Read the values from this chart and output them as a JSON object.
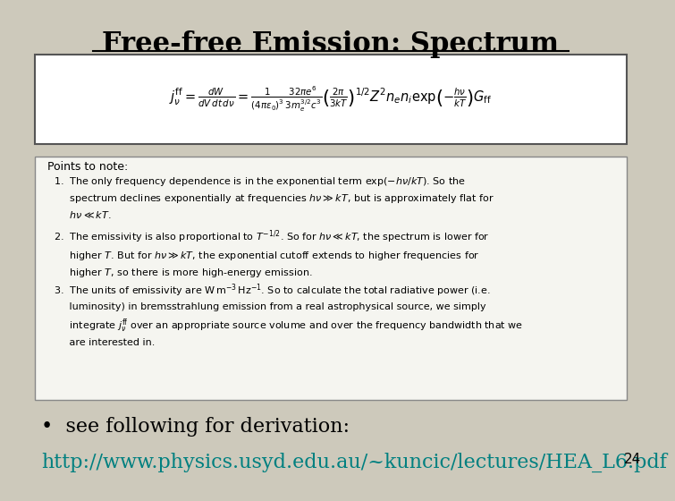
{
  "title": "Free-free Emission: Spectrum",
  "title_fontsize": 22,
  "title_color": "#000000",
  "background_color": "#cdc9bb",
  "formula_box_color": "#ffffff",
  "formula_box_border": "#555555",
  "notes_box_color": "#f5f5f0",
  "notes_box_border": "#888888",
  "bullet_text": "see following for derivation:",
  "bullet_fontsize": 16,
  "url_text": "http://www.physics.usyd.edu.au/~kuncic/lectures/HEA_L6.pdf",
  "url_color": "#008080",
  "page_number": "24",
  "notes_title": "Points to note:"
}
